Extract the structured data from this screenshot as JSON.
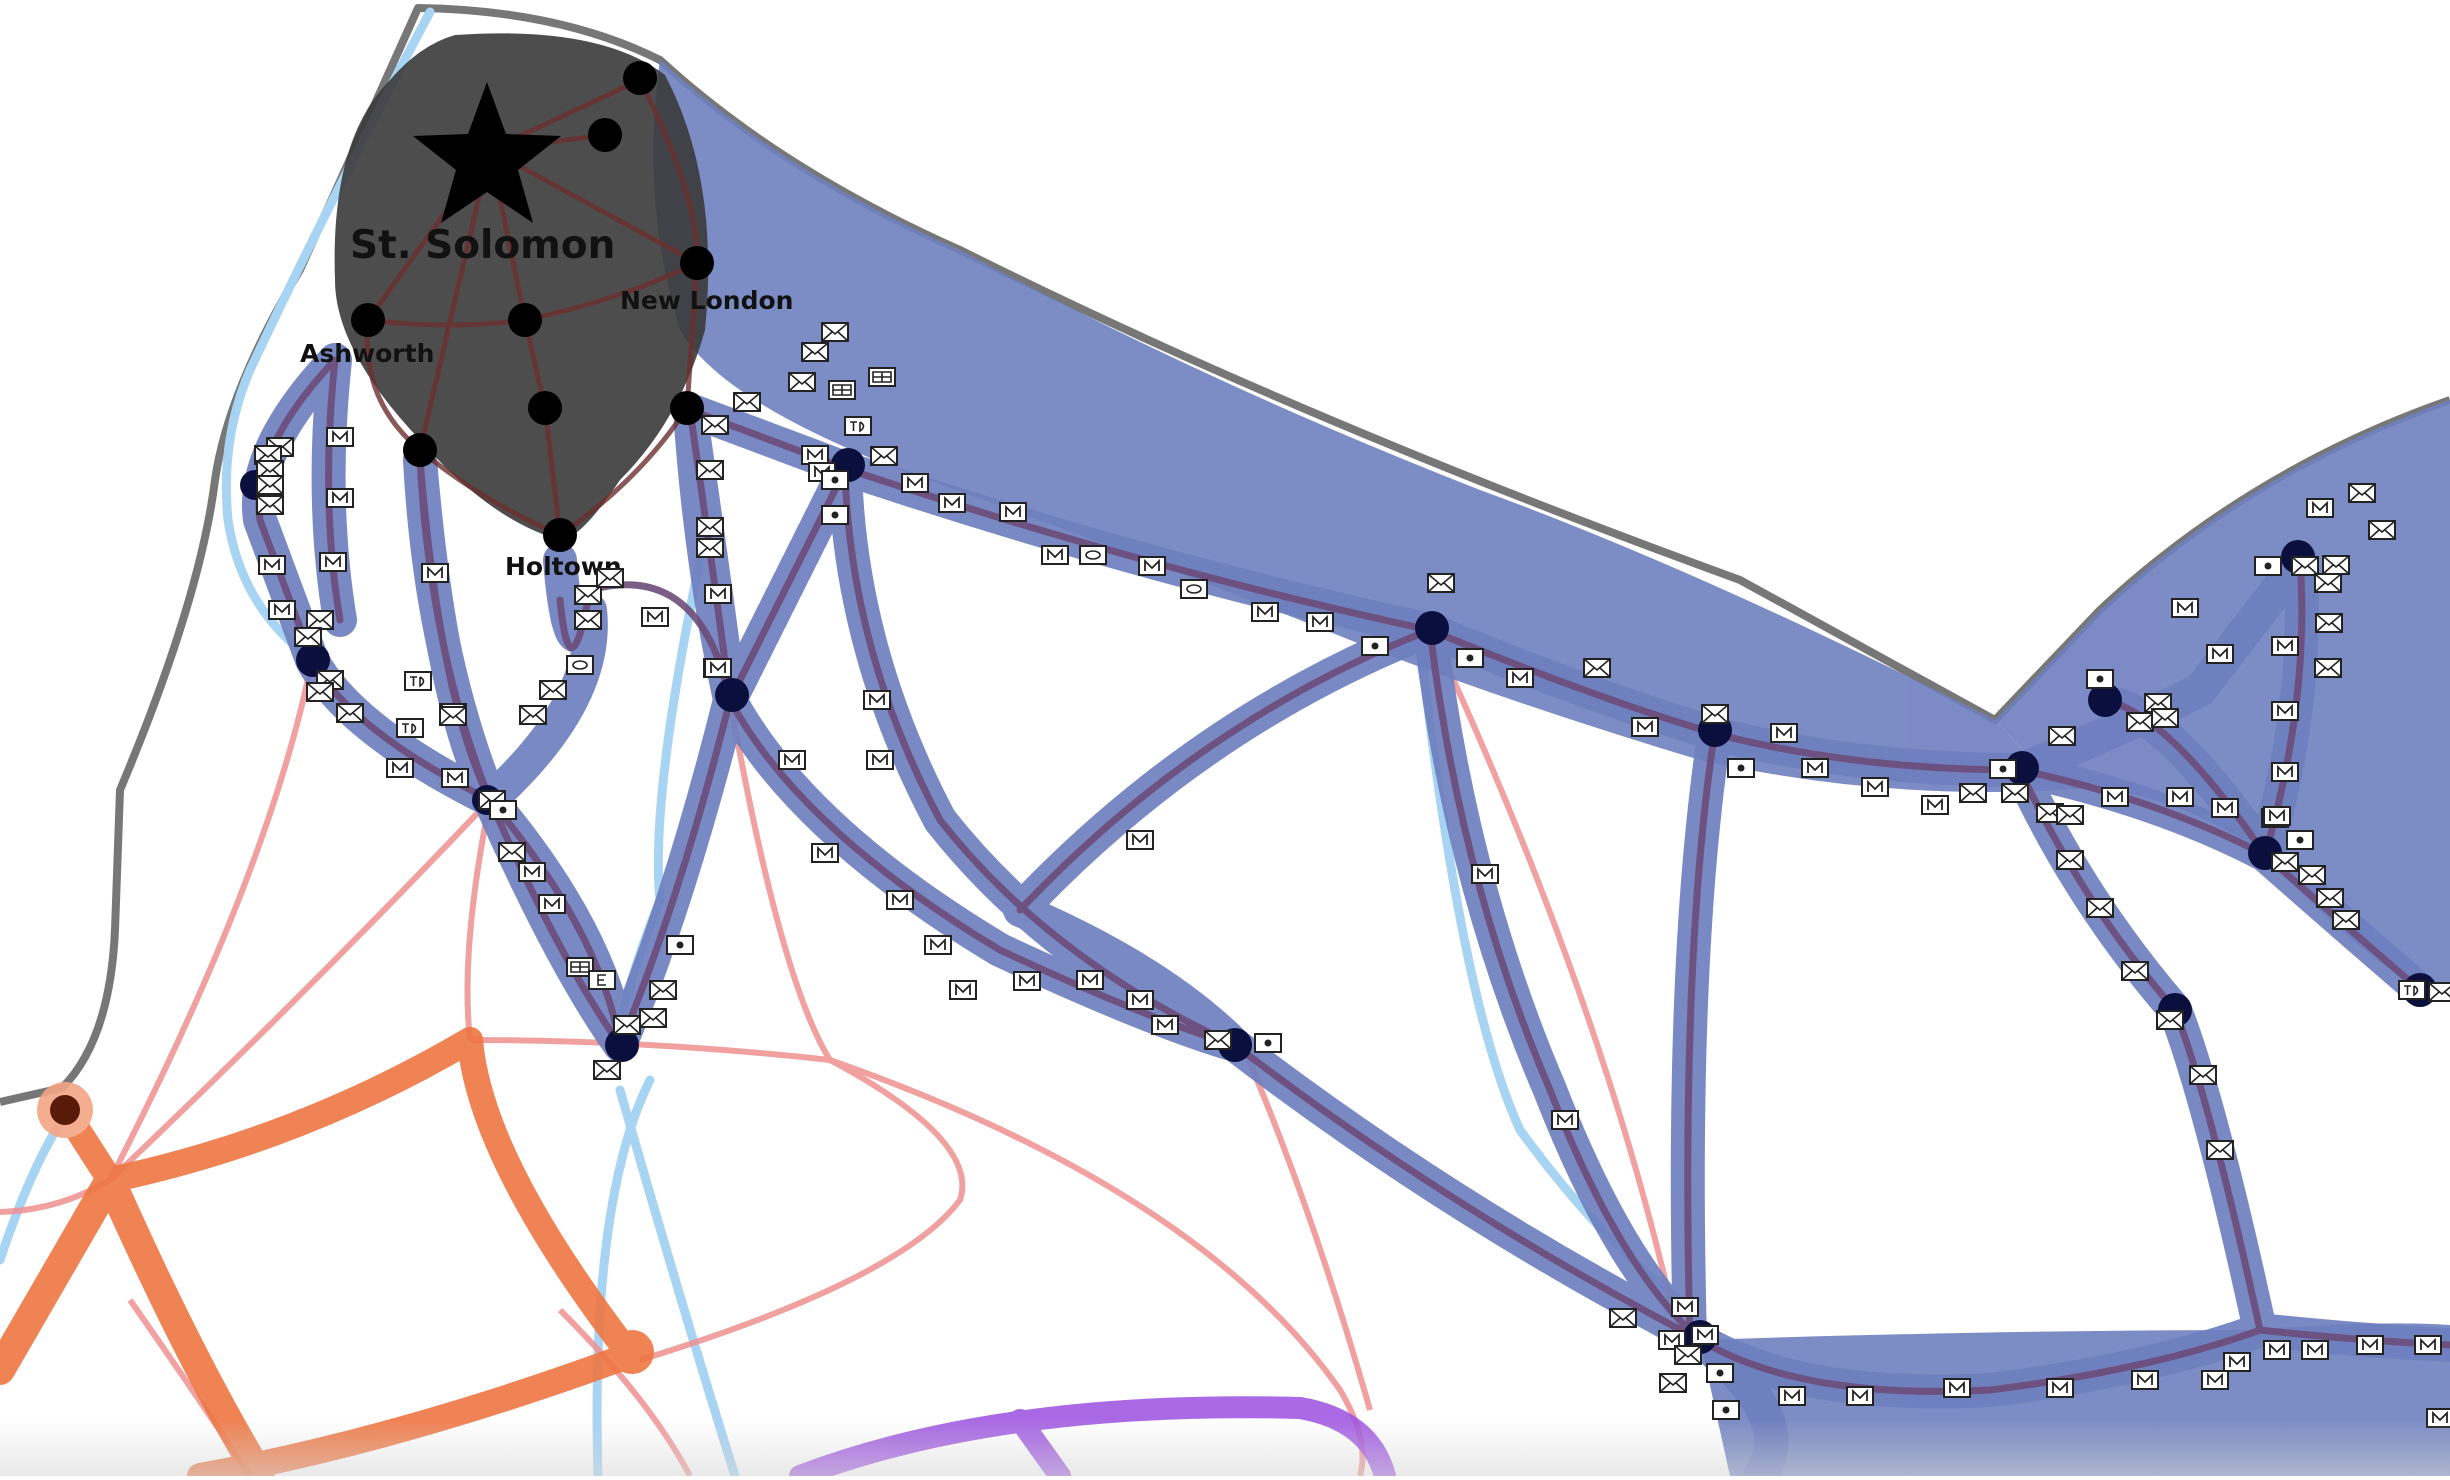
{
  "map": {
    "capital": {
      "name": "St. Solomon",
      "icon": "star-icon"
    },
    "cities": [
      {
        "name": "New London"
      },
      {
        "name": "Ashworth"
      },
      {
        "name": "Holtown"
      }
    ],
    "legend_icons": {
      "envelope": "envelope-icon",
      "mail_letter": "letter-m-icon",
      "postcard": "postcard-icon",
      "parcel": "parcel-icon",
      "dot_box": "dot-box-icon",
      "td_box": "td-box-icon",
      "e_box": "e-box-icon"
    },
    "colors": {
      "company_network": "#6e7fbf",
      "road": "#6c4d7a",
      "rail": "#ef9090",
      "river": "#a8d4f4",
      "highway": "#ee7642",
      "coast": "#777777",
      "capital_region": "#3a3a3a",
      "purple_route": "#9b4fe0"
    }
  }
}
